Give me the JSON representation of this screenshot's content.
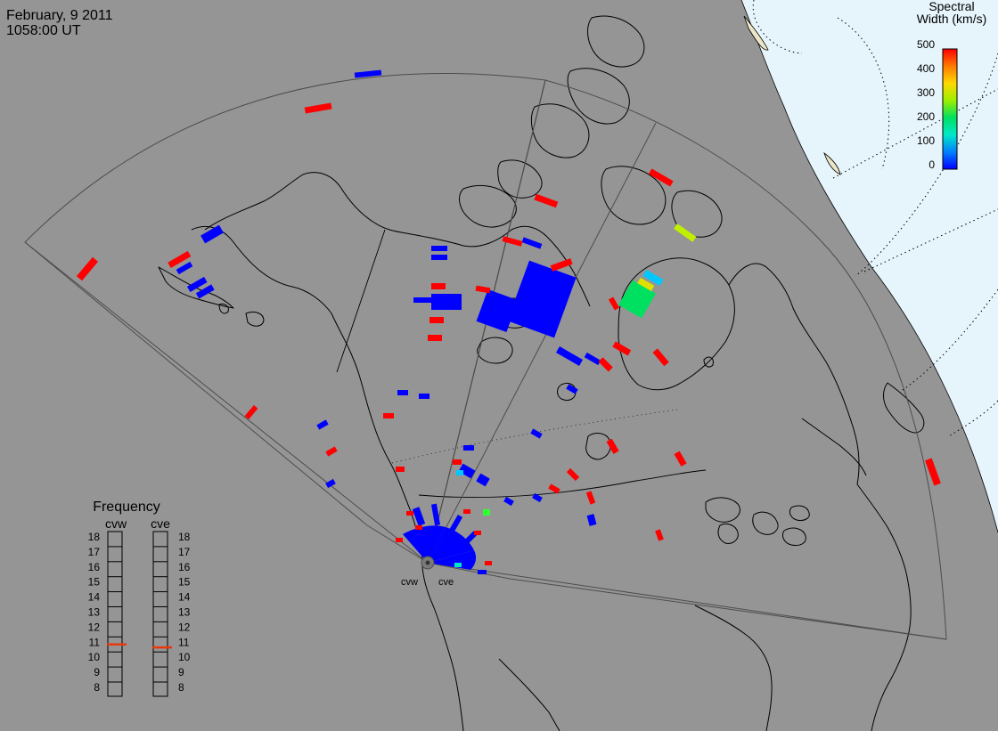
{
  "header": {
    "date": "February, 9 2011",
    "time": "1058:00 UT"
  },
  "map": {
    "background_color": "#959595",
    "polar_cap_color": "#e6f4fc",
    "coastline_color": "#000000",
    "grid_line_color": "#000000"
  },
  "radars": [
    {
      "code": "cvw",
      "label": "cvw"
    },
    {
      "code": "cve",
      "label": "cve"
    }
  ],
  "colorbar": {
    "title_line1": "Spectral",
    "title_line2": "Width (km/s)",
    "ticks": [
      "500",
      "400",
      "300",
      "200",
      "100",
      "0"
    ],
    "stops": [
      "#ff0000",
      "#ff7a00",
      "#ffd800",
      "#9cf000",
      "#00e060",
      "#00e8c8",
      "#0080ff",
      "#0000ff"
    ],
    "min": 0,
    "max": 500
  },
  "frequency_panel": {
    "title": "Frequency",
    "columns": [
      {
        "label": "cvw",
        "value_mhz": 10.8
      },
      {
        "label": "cve",
        "value_mhz": 10.6
      }
    ],
    "ticks": [
      "18",
      "17",
      "16",
      "15",
      "14",
      "13",
      "12",
      "11",
      "10",
      "9",
      "8"
    ],
    "marker_color": "#e8380c"
  }
}
